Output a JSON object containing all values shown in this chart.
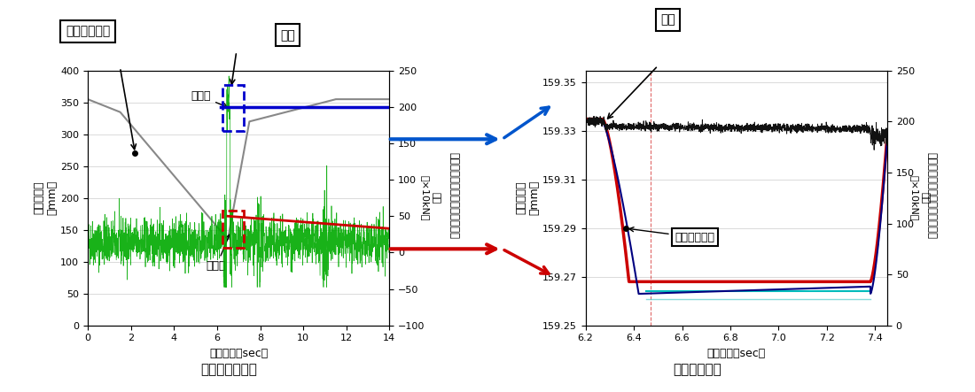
{
  "fig_width": 11.0,
  "fig_height": 4.43,
  "left_chart": {
    "xlabel": "経過時間（sec）",
    "ylabel_left": "ストローク\n（mm）",
    "xlim": [
      0,
      14
    ],
    "ylim_left": [
      0,
      400
    ],
    "ylim_right": [
      -100,
      250
    ],
    "yticks_left": [
      0,
      50,
      100,
      150,
      200,
      250,
      300,
      350,
      400
    ],
    "yticks_right": [
      -100,
      -50,
      0,
      50,
      100,
      150,
      200,
      250
    ],
    "xticks": [
      0,
      2,
      4,
      6,
      8,
      10,
      12,
      14
    ],
    "annotation_kakochu": "加工中",
    "annotation_shisiten": "下死点",
    "label_slide": "スライド位置",
    "label_load": "荷重",
    "slide_line_color": "#888888",
    "load_blue_color": "#0000cc",
    "load_red_color": "#cc0000",
    "green_noise_color": "#00aa00",
    "ylabel_right": "荷重\n（×10kN）",
    "motor_torque_label": "モータトルクより換算した荷重"
  },
  "right_chart": {
    "xlabel": "経過時間（sec）",
    "ylabel_left": "ストローク\n（mm）",
    "xlim": [
      6.2,
      7.45
    ],
    "ylim_left": [
      159.25,
      159.355
    ],
    "ylim_right": [
      0,
      250
    ],
    "yticks_left": [
      159.25,
      159.27,
      159.29,
      159.31,
      159.33,
      159.35
    ],
    "yticks_right": [
      0,
      50,
      100,
      150,
      200,
      250
    ],
    "xticks": [
      6.2,
      6.4,
      6.6,
      6.8,
      7.0,
      7.2,
      7.4
    ],
    "annotation_slide": "スライド位置",
    "label_load": "荷重",
    "red_curve_color": "#cc0000",
    "navy_color": "#000080",
    "cyan_line_color": "#00aaaa",
    "black_noise_color": "#111111",
    "ylabel_right": "荷重\n（×10kN）",
    "motor_torque_label": "モータトルクより換算した荷重"
  },
  "arrow_blue_color": "#0055cc",
  "arrow_red_color": "#cc0000",
  "box_blue_color": "#0000cc",
  "box_red_color": "#cc0000"
}
